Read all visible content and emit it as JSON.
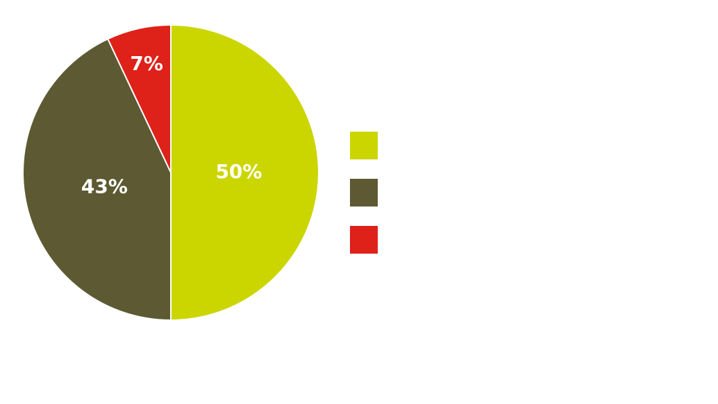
{
  "chart_data": {
    "type": "pie",
    "values": [
      50,
      43,
      7
    ],
    "value_labels": [
      "50%",
      "43%",
      "7%"
    ],
    "colors": [
      "#cbd600",
      "#5d5a33",
      "#de2119"
    ],
    "legend": "right"
  }
}
